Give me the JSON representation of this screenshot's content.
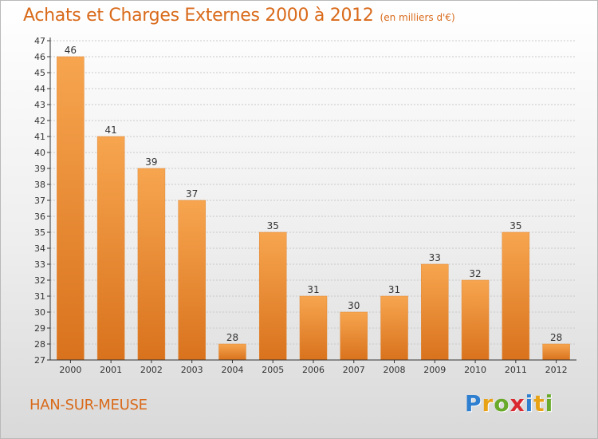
{
  "title": "Achats et Charges Externes 2000 à 2012",
  "units": "(en milliers d'€)",
  "commune": "HAN-SUR-MEUSE",
  "logo": {
    "letters": [
      "P",
      "r",
      "o",
      "x",
      "i",
      "t",
      "i"
    ],
    "colors": [
      "#2e7fd0",
      "#e8a216",
      "#6aaa2b",
      "#d9282f",
      "#2e7fd0",
      "#e8a216",
      "#6aaa2b"
    ]
  },
  "colors": {
    "bar_light": "#f7a54f",
    "bar_dark": "#d9721d",
    "text": "#d96a1a",
    "axis": "#333333",
    "grid": "#c9c9c9"
  },
  "chart_data": {
    "type": "bar",
    "title": "Achats et Charges Externes 2000 à 2012",
    "subtitle": "(en milliers d'€)",
    "categories": [
      "2000",
      "2001",
      "2002",
      "2003",
      "2004",
      "2005",
      "2006",
      "2007",
      "2008",
      "2009",
      "2010",
      "2011",
      "2012"
    ],
    "values": [
      46,
      41,
      39,
      37,
      28,
      35,
      31,
      30,
      31,
      33,
      32,
      35,
      28
    ],
    "ylim": [
      27,
      47
    ],
    "yticks": [
      27,
      28,
      29,
      30,
      31,
      32,
      33,
      34,
      35,
      36,
      37,
      38,
      39,
      40,
      41,
      42,
      43,
      44,
      45,
      46,
      47
    ],
    "grid": true,
    "data_labels": true
  }
}
